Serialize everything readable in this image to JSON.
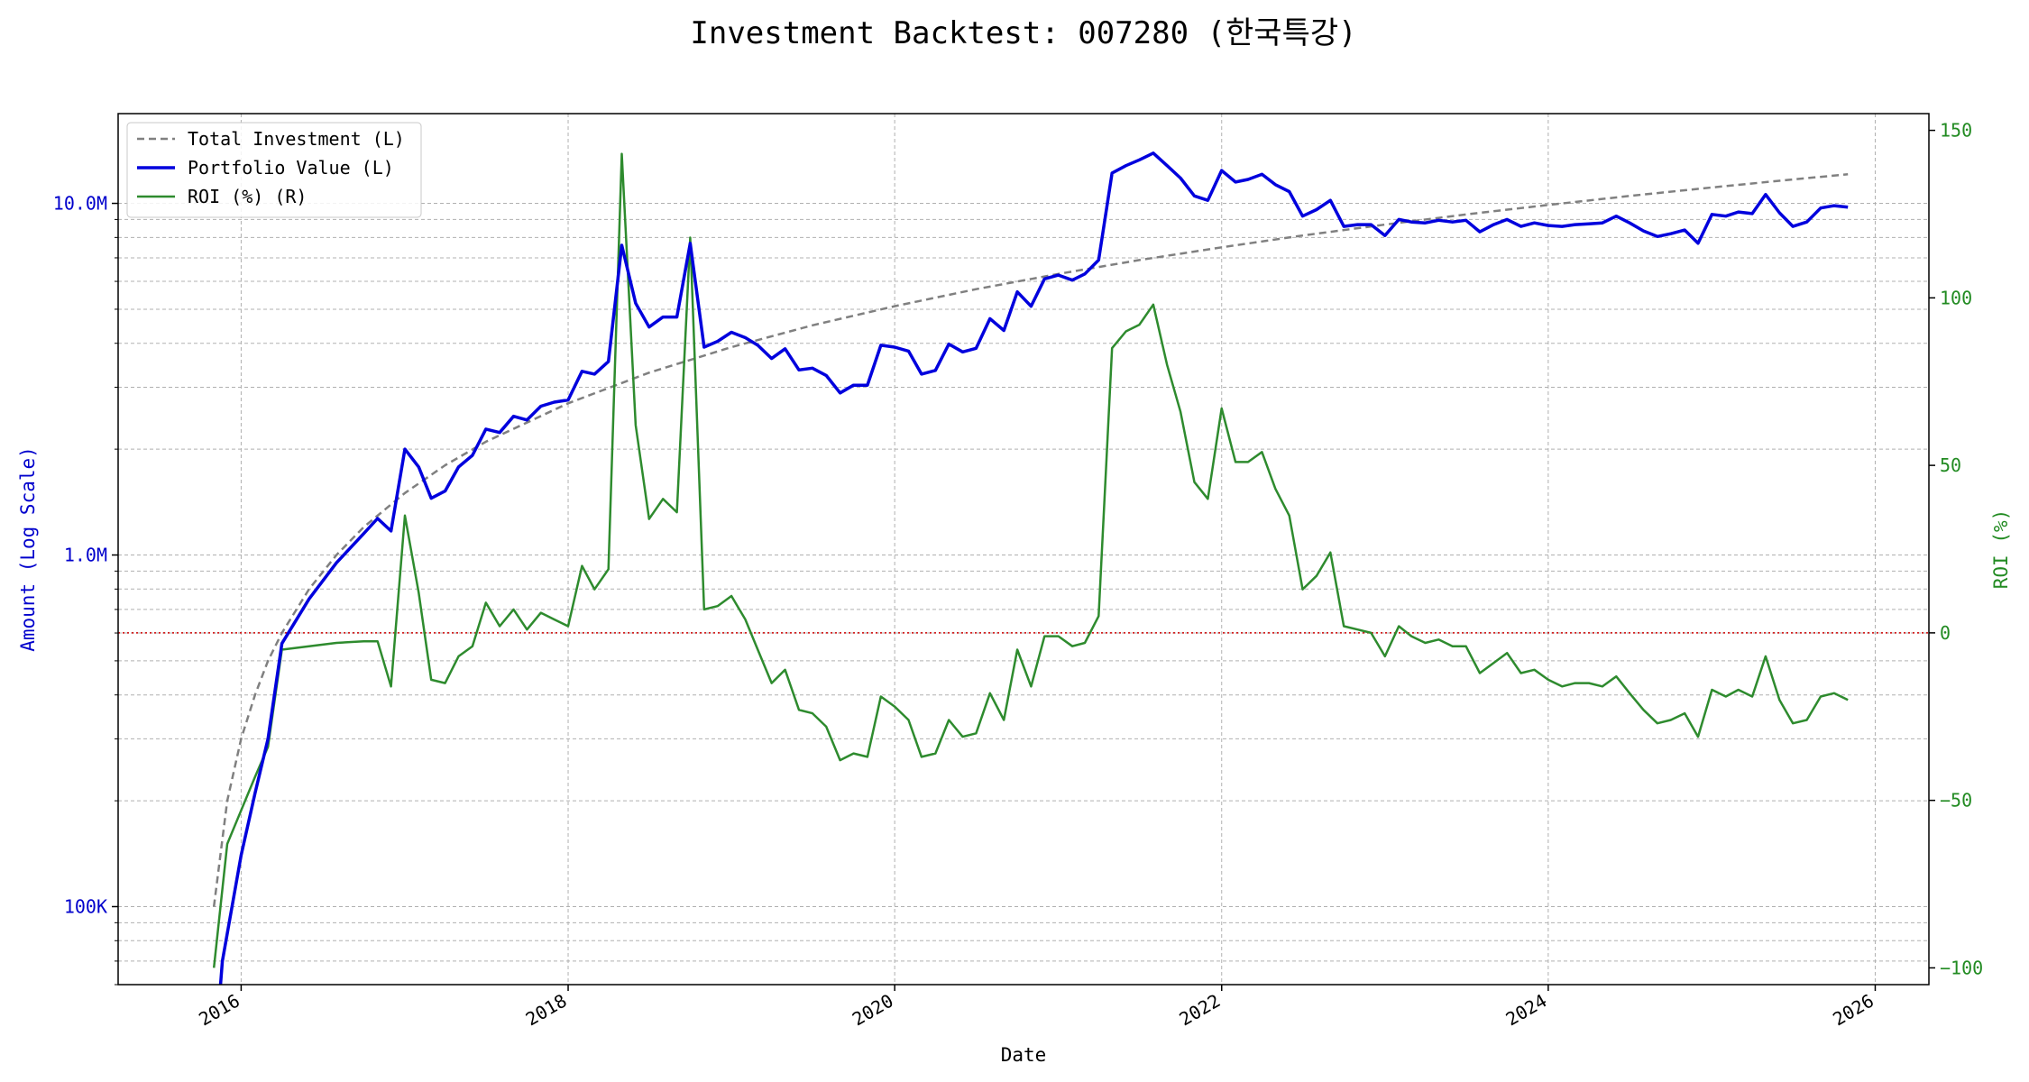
{
  "chart_data": {
    "type": "line",
    "title": "Investment Backtest: 007280 (한국특강)",
    "xlabel": "Date",
    "ylabel_left": "Amount (Log Scale)",
    "ylabel_right": "ROI (%)",
    "y_left_scale": "log",
    "y_left_range": [
      60000,
      18000000
    ],
    "y_right_range": [
      -105,
      155
    ],
    "x_range": [
      "2015-04-01",
      "2026-05-01"
    ],
    "x_ticks": [
      "2016",
      "2018",
      "2020",
      "2022",
      "2024",
      "2026"
    ],
    "y_left_ticks": [
      {
        "value": 100000,
        "label": "100K"
      },
      {
        "value": 1000000,
        "label": "1.0M"
      },
      {
        "value": 10000000,
        "label": "10.0M"
      }
    ],
    "y_right_ticks": [
      -100,
      -50,
      0,
      50,
      100,
      150
    ],
    "grid": true,
    "legend_position": "top-left",
    "zero_line": {
      "axis": "right",
      "value": 0,
      "color": "#cc0000"
    },
    "colors": {
      "total_investment": "#808080",
      "portfolio_value": "#0000dd",
      "roi": "#2e8b2e",
      "left_axis": "#0000cc",
      "right_axis": "#228b22"
    },
    "series": [
      {
        "name": "Total Investment (L)",
        "axis": "left",
        "style": "dashed",
        "points": [
          [
            "2015-11-01",
            100000
          ],
          [
            "2015-12-01",
            200000
          ],
          [
            "2016-01-01",
            300000
          ],
          [
            "2016-02-01",
            400000
          ],
          [
            "2016-03-01",
            500000
          ],
          [
            "2016-04-01",
            600000
          ],
          [
            "2016-06-01",
            800000
          ],
          [
            "2016-08-01",
            1000000
          ],
          [
            "2016-10-01",
            1200000
          ],
          [
            "2017-01-01",
            1500000
          ],
          [
            "2017-04-01",
            1800000
          ],
          [
            "2017-07-01",
            2100000
          ],
          [
            "2018-01-01",
            2700000
          ],
          [
            "2018-07-01",
            3300000
          ],
          [
            "2019-01-01",
            3900000
          ],
          [
            "2019-07-01",
            4500000
          ],
          [
            "2020-01-01",
            5100000
          ],
          [
            "2020-07-01",
            5700000
          ],
          [
            "2021-01-01",
            6300000
          ],
          [
            "2021-07-01",
            6900000
          ],
          [
            "2022-01-01",
            7500000
          ],
          [
            "2022-07-01",
            8100000
          ],
          [
            "2023-01-01",
            8700000
          ],
          [
            "2023-07-01",
            9300000
          ],
          [
            "2024-01-01",
            9900000
          ],
          [
            "2024-07-01",
            10500000
          ],
          [
            "2025-01-01",
            11100000
          ],
          [
            "2025-07-01",
            11700000
          ],
          [
            "2025-11-01",
            12100000
          ]
        ]
      },
      {
        "name": "Portfolio Value (L)",
        "axis": "left",
        "style": "solid",
        "points": [
          [
            "2015-11-15",
            58000
          ],
          [
            "2015-11-20",
            70000
          ],
          [
            "2016-01-01",
            140000
          ],
          [
            "2016-02-01",
            210000
          ],
          [
            "2016-03-01",
            300000
          ],
          [
            "2016-04-01",
            560000
          ],
          [
            "2016-06-01",
            750000
          ],
          [
            "2016-08-01",
            950000
          ],
          [
            "2016-10-01",
            1150000
          ],
          [
            "2016-11-01",
            1270000
          ],
          [
            "2016-12-01",
            1170000
          ],
          [
            "2017-01-01",
            2000000
          ],
          [
            "2017-02-01",
            1780000
          ],
          [
            "2017-03-01",
            1450000
          ],
          [
            "2017-04-01",
            1520000
          ],
          [
            "2017-05-01",
            1780000
          ],
          [
            "2017-06-01",
            1920000
          ],
          [
            "2017-07-01",
            2280000
          ],
          [
            "2017-08-01",
            2230000
          ],
          [
            "2017-09-01",
            2480000
          ],
          [
            "2017-10-01",
            2420000
          ],
          [
            "2017-11-01",
            2650000
          ],
          [
            "2017-12-01",
            2720000
          ],
          [
            "2018-01-01",
            2760000
          ],
          [
            "2018-02-01",
            3330000
          ],
          [
            "2018-03-01",
            3270000
          ],
          [
            "2018-04-01",
            3550000
          ],
          [
            "2018-05-01",
            7600000
          ],
          [
            "2018-06-01",
            5200000
          ],
          [
            "2018-07-01",
            4450000
          ],
          [
            "2018-08-01",
            4750000
          ],
          [
            "2018-09-01",
            4750000
          ],
          [
            "2018-10-01",
            7700000
          ],
          [
            "2018-11-01",
            3900000
          ],
          [
            "2018-12-01",
            4050000
          ],
          [
            "2019-01-01",
            4300000
          ],
          [
            "2019-02-01",
            4150000
          ],
          [
            "2019-03-01",
            3950000
          ],
          [
            "2019-04-01",
            3620000
          ],
          [
            "2019-05-01",
            3860000
          ],
          [
            "2019-06-01",
            3360000
          ],
          [
            "2019-07-01",
            3400000
          ],
          [
            "2019-08-01",
            3240000
          ],
          [
            "2019-09-01",
            2890000
          ],
          [
            "2019-10-01",
            3040000
          ],
          [
            "2019-11-01",
            3040000
          ],
          [
            "2019-12-01",
            3950000
          ],
          [
            "2020-01-01",
            3900000
          ],
          [
            "2020-02-01",
            3800000
          ],
          [
            "2020-03-01",
            3270000
          ],
          [
            "2020-04-01",
            3350000
          ],
          [
            "2020-05-01",
            3980000
          ],
          [
            "2020-06-01",
            3780000
          ],
          [
            "2020-07-01",
            3870000
          ],
          [
            "2020-08-01",
            4700000
          ],
          [
            "2020-09-01",
            4350000
          ],
          [
            "2020-10-01",
            5600000
          ],
          [
            "2020-11-01",
            5100000
          ],
          [
            "2020-12-01",
            6100000
          ],
          [
            "2021-01-01",
            6250000
          ],
          [
            "2021-02-01",
            6050000
          ],
          [
            "2021-03-01",
            6300000
          ],
          [
            "2021-04-01",
            6900000
          ],
          [
            "2021-05-01",
            12200000
          ],
          [
            "2021-06-01",
            12800000
          ],
          [
            "2021-07-01",
            13300000
          ],
          [
            "2021-08-01",
            13900000
          ],
          [
            "2021-09-01",
            12800000
          ],
          [
            "2021-10-01",
            11800000
          ],
          [
            "2021-11-01",
            10500000
          ],
          [
            "2021-12-01",
            10200000
          ],
          [
            "2022-01-01",
            12400000
          ],
          [
            "2022-02-01",
            11500000
          ],
          [
            "2022-03-01",
            11700000
          ],
          [
            "2022-04-01",
            12100000
          ],
          [
            "2022-05-01",
            11300000
          ],
          [
            "2022-06-01",
            10800000
          ],
          [
            "2022-07-01",
            9200000
          ],
          [
            "2022-08-01",
            9600000
          ],
          [
            "2022-09-01",
            10200000
          ],
          [
            "2022-10-01",
            8600000
          ],
          [
            "2022-11-01",
            8700000
          ],
          [
            "2022-12-01",
            8700000
          ],
          [
            "2023-01-01",
            8100000
          ],
          [
            "2023-02-01",
            9000000
          ],
          [
            "2023-03-01",
            8850000
          ],
          [
            "2023-04-01",
            8800000
          ],
          [
            "2023-05-01",
            8950000
          ],
          [
            "2023-06-01",
            8850000
          ],
          [
            "2023-07-01",
            8950000
          ],
          [
            "2023-08-01",
            8300000
          ],
          [
            "2023-09-01",
            8700000
          ],
          [
            "2023-10-01",
            9000000
          ],
          [
            "2023-11-01",
            8600000
          ],
          [
            "2023-12-01",
            8800000
          ],
          [
            "2024-01-01",
            8650000
          ],
          [
            "2024-02-01",
            8600000
          ],
          [
            "2024-03-01",
            8700000
          ],
          [
            "2024-04-01",
            8750000
          ],
          [
            "2024-05-01",
            8800000
          ],
          [
            "2024-06-01",
            9200000
          ],
          [
            "2024-07-01",
            8800000
          ],
          [
            "2024-08-01",
            8350000
          ],
          [
            "2024-09-01",
            8050000
          ],
          [
            "2024-10-01",
            8200000
          ],
          [
            "2024-11-01",
            8400000
          ],
          [
            "2024-12-01",
            7700000
          ],
          [
            "2025-01-01",
            9300000
          ],
          [
            "2025-02-01",
            9200000
          ],
          [
            "2025-03-01",
            9450000
          ],
          [
            "2025-04-01",
            9350000
          ],
          [
            "2025-05-01",
            10600000
          ],
          [
            "2025-06-01",
            9400000
          ],
          [
            "2025-07-01",
            8600000
          ],
          [
            "2025-08-01",
            8850000
          ],
          [
            "2025-09-01",
            9700000
          ],
          [
            "2025-10-01",
            9850000
          ],
          [
            "2025-11-01",
            9750000
          ]
        ]
      },
      {
        "name": "ROI (%) (R)",
        "axis": "right",
        "style": "solid",
        "points": [
          [
            "2015-11-01",
            -100
          ],
          [
            "2015-12-01",
            -63
          ],
          [
            "2016-01-01",
            -53
          ],
          [
            "2016-02-01",
            -43
          ],
          [
            "2016-03-01",
            -34
          ],
          [
            "2016-04-01",
            -5
          ],
          [
            "2016-06-01",
            -4
          ],
          [
            "2016-08-01",
            -3
          ],
          [
            "2016-10-01",
            -2.5
          ],
          [
            "2016-11-01",
            -2.5
          ],
          [
            "2016-12-01",
            -16
          ],
          [
            "2017-01-01",
            35
          ],
          [
            "2017-02-01",
            12
          ],
          [
            "2017-03-01",
            -14
          ],
          [
            "2017-04-01",
            -15
          ],
          [
            "2017-05-01",
            -7
          ],
          [
            "2017-06-01",
            -4
          ],
          [
            "2017-07-01",
            9
          ],
          [
            "2017-08-01",
            2
          ],
          [
            "2017-09-01",
            7
          ],
          [
            "2017-10-01",
            1
          ],
          [
            "2017-11-01",
            6
          ],
          [
            "2017-12-01",
            4
          ],
          [
            "2018-01-01",
            2
          ],
          [
            "2018-02-01",
            20
          ],
          [
            "2018-03-01",
            13
          ],
          [
            "2018-04-01",
            19
          ],
          [
            "2018-05-01",
            143
          ],
          [
            "2018-06-01",
            62
          ],
          [
            "2018-07-01",
            34
          ],
          [
            "2018-08-01",
            40
          ],
          [
            "2018-09-01",
            36
          ],
          [
            "2018-10-01",
            118
          ],
          [
            "2018-11-01",
            7
          ],
          [
            "2018-12-01",
            8
          ],
          [
            "2019-01-01",
            11
          ],
          [
            "2019-02-01",
            4
          ],
          [
            "2019-03-01",
            -5
          ],
          [
            "2019-04-01",
            -15
          ],
          [
            "2019-05-01",
            -11
          ],
          [
            "2019-06-01",
            -23
          ],
          [
            "2019-07-01",
            -24
          ],
          [
            "2019-08-01",
            -28
          ],
          [
            "2019-09-01",
            -38
          ],
          [
            "2019-10-01",
            -36
          ],
          [
            "2019-11-01",
            -37
          ],
          [
            "2019-12-01",
            -19
          ],
          [
            "2020-01-01",
            -22
          ],
          [
            "2020-02-01",
            -26
          ],
          [
            "2020-03-01",
            -37
          ],
          [
            "2020-04-01",
            -36
          ],
          [
            "2020-05-01",
            -26
          ],
          [
            "2020-06-01",
            -31
          ],
          [
            "2020-07-01",
            -30
          ],
          [
            "2020-08-01",
            -18
          ],
          [
            "2020-09-01",
            -26
          ],
          [
            "2020-10-01",
            -5
          ],
          [
            "2020-11-01",
            -16
          ],
          [
            "2020-12-01",
            -1
          ],
          [
            "2021-01-01",
            -1
          ],
          [
            "2021-02-01",
            -4
          ],
          [
            "2021-03-01",
            -3
          ],
          [
            "2021-04-01",
            5
          ],
          [
            "2021-05-01",
            85
          ],
          [
            "2021-06-01",
            90
          ],
          [
            "2021-07-01",
            92
          ],
          [
            "2021-08-01",
            98
          ],
          [
            "2021-09-01",
            80
          ],
          [
            "2021-10-01",
            66
          ],
          [
            "2021-11-01",
            45
          ],
          [
            "2021-12-01",
            40
          ],
          [
            "2022-01-01",
            67
          ],
          [
            "2022-02-01",
            51
          ],
          [
            "2022-03-01",
            51
          ],
          [
            "2022-04-01",
            54
          ],
          [
            "2022-05-01",
            43
          ],
          [
            "2022-06-01",
            35
          ],
          [
            "2022-07-01",
            13
          ],
          [
            "2022-08-01",
            17
          ],
          [
            "2022-09-01",
            24
          ],
          [
            "2022-10-01",
            2
          ],
          [
            "2022-11-01",
            1
          ],
          [
            "2022-12-01",
            0
          ],
          [
            "2023-01-01",
            -7
          ],
          [
            "2023-02-01",
            2
          ],
          [
            "2023-03-01",
            -1
          ],
          [
            "2023-04-01",
            -3
          ],
          [
            "2023-05-01",
            -2
          ],
          [
            "2023-06-01",
            -4
          ],
          [
            "2023-07-01",
            -4
          ],
          [
            "2023-08-01",
            -12
          ],
          [
            "2023-09-01",
            -9
          ],
          [
            "2023-10-01",
            -6
          ],
          [
            "2023-11-01",
            -12
          ],
          [
            "2023-12-01",
            -11
          ],
          [
            "2024-01-01",
            -14
          ],
          [
            "2024-02-01",
            -16
          ],
          [
            "2024-03-01",
            -15
          ],
          [
            "2024-04-01",
            -15
          ],
          [
            "2024-05-01",
            -16
          ],
          [
            "2024-06-01",
            -13
          ],
          [
            "2024-07-01",
            -18
          ],
          [
            "2024-08-01",
            -23
          ],
          [
            "2024-09-01",
            -27
          ],
          [
            "2024-10-01",
            -26
          ],
          [
            "2024-11-01",
            -24
          ],
          [
            "2024-12-01",
            -31
          ],
          [
            "2025-01-01",
            -17
          ],
          [
            "2025-02-01",
            -19
          ],
          [
            "2025-03-01",
            -17
          ],
          [
            "2025-04-01",
            -19
          ],
          [
            "2025-05-01",
            -7
          ],
          [
            "2025-06-01",
            -20
          ],
          [
            "2025-07-01",
            -27
          ],
          [
            "2025-08-01",
            -26
          ],
          [
            "2025-09-01",
            -19
          ],
          [
            "2025-10-01",
            -18
          ],
          [
            "2025-11-01",
            -20
          ]
        ]
      }
    ]
  }
}
